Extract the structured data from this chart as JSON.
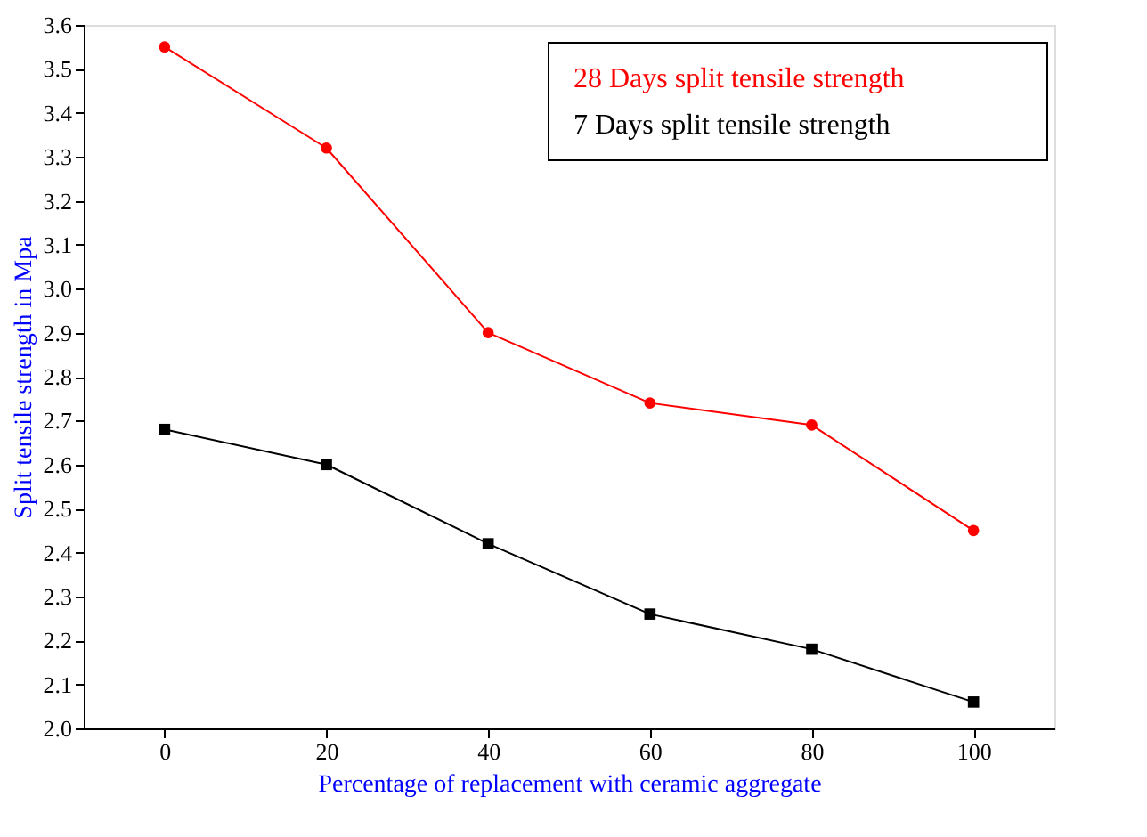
{
  "chart_data": {
    "type": "line",
    "xlabel": "Percentage of replacement with ceramic aggregate",
    "ylabel": "Split tensile strength in Mpa",
    "x": [
      0,
      20,
      40,
      60,
      80,
      100
    ],
    "series": [
      {
        "name": "28 Days split tensile strength",
        "color": "#ff0000",
        "marker": "circle",
        "values": [
          3.55,
          3.32,
          2.9,
          2.74,
          2.69,
          2.45
        ]
      },
      {
        "name": "7 Days split tensile strength",
        "color": "#000000",
        "marker": "square",
        "values": [
          2.68,
          2.6,
          2.42,
          2.26,
          2.18,
          2.06
        ]
      }
    ],
    "xlim": [
      -10,
      110
    ],
    "xticks": [
      0,
      20,
      40,
      60,
      80,
      100
    ],
    "ylim": [
      2.0,
      3.6
    ],
    "yticks": [
      {
        "value": 2,
        "label": "2.0"
      },
      2.1,
      2.2,
      2.3,
      2.4,
      2.5,
      2.6,
      2.7,
      2.8,
      2.9,
      {
        "value": 3,
        "label": "3.0"
      },
      3.1,
      3.2,
      3.3,
      3.4,
      3.5,
      3.6
    ],
    "grid": false,
    "legend": "top right"
  }
}
